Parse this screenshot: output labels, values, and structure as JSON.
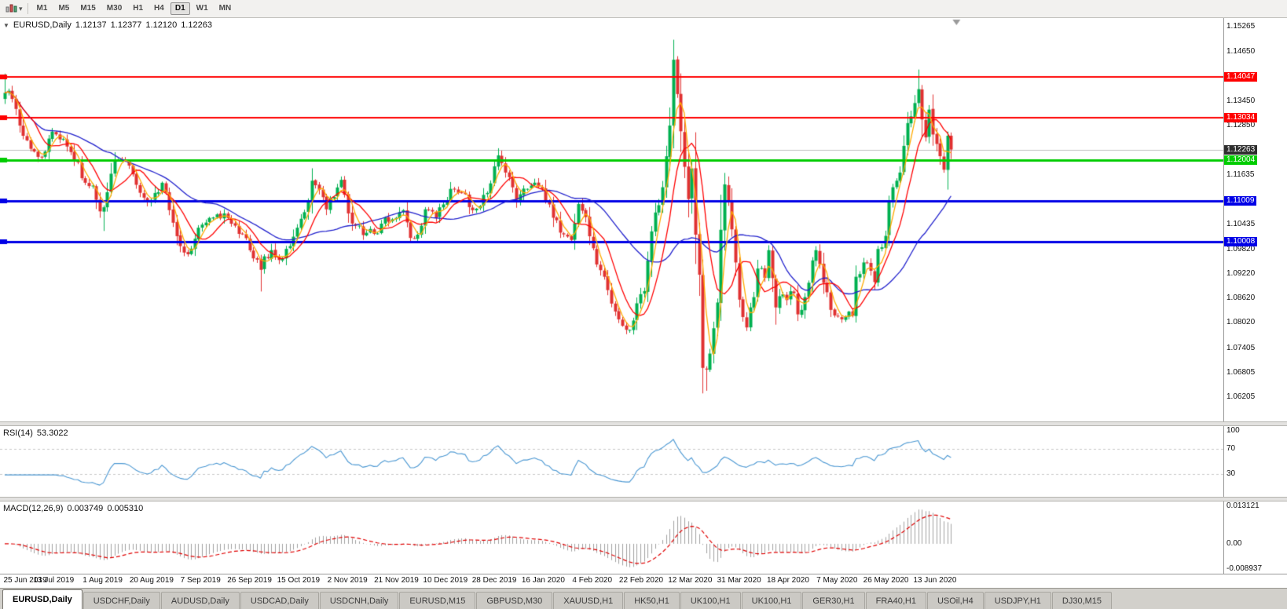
{
  "toolbar": {
    "timeframes": [
      "M1",
      "M5",
      "M15",
      "M30",
      "H1",
      "H4",
      "D1",
      "W1",
      "MN"
    ],
    "active_timeframe": "D1"
  },
  "chart": {
    "collapse_arrow": "▼",
    "header": {
      "symbol": "EURUSD,Daily",
      "open": "1.12137",
      "high": "1.12377",
      "low": "1.12120",
      "close": "1.12263"
    }
  },
  "chart_data": {
    "type": "candlestick",
    "symbol": "EURUSD",
    "timeframe": "Daily",
    "title": "EURUSD,Daily",
    "last_ohlc": {
      "open": 1.12137,
      "high": 1.12377,
      "low": 1.1212,
      "close": 1.12263
    },
    "current_price": 1.12263,
    "y_range": [
      1.0561,
      1.1548
    ],
    "y_ticks": [
      {
        "value": 1.15265,
        "label": "1.15265"
      },
      {
        "value": 1.1465,
        "label": "1.14650"
      },
      {
        "value": 1.1345,
        "label": "1.13450"
      },
      {
        "value": 1.1285,
        "label": "1.12850"
      },
      {
        "value": 1.11635,
        "label": "1.11635"
      },
      {
        "value": 1.10435,
        "label": "1.10435"
      },
      {
        "value": 1.0982,
        "label": "1.09820"
      },
      {
        "value": 1.0922,
        "label": "1.09220"
      },
      {
        "value": 1.0862,
        "label": "1.08620"
      },
      {
        "value": 1.0802,
        "label": "1.08020"
      },
      {
        "value": 1.07405,
        "label": "1.07405"
      },
      {
        "value": 1.06805,
        "label": "1.06805"
      },
      {
        "value": 1.06205,
        "label": "1.06205"
      }
    ],
    "price_lines": [
      {
        "value": 1.14047,
        "label": "1.14047",
        "color": "#ff0000",
        "width": 2,
        "kind": "resistance"
      },
      {
        "value": 1.13034,
        "label": "1.13034",
        "color": "#ff0000",
        "width": 2,
        "kind": "resistance"
      },
      {
        "value": 1.12263,
        "label": "1.12263",
        "color": "#2e2e2e",
        "width": 1,
        "kind": "current-price"
      },
      {
        "value": 1.12004,
        "label": "1.12004",
        "color": "#00cc00",
        "width": 3,
        "kind": "support"
      },
      {
        "value": 1.11009,
        "label": "1.11009",
        "color": "#0000e6",
        "width": 3,
        "kind": "support"
      },
      {
        "value": 1.10008,
        "label": "1.10008",
        "color": "#0000e6",
        "width": 3,
        "kind": "support"
      }
    ],
    "x_labels": [
      "25 Jun 2019",
      "13 Jul 2019",
      "1 Aug 2019",
      "20 Aug 2019",
      "7 Sep 2019",
      "26 Sep 2019",
      "15 Oct 2019",
      "2 Nov 2019",
      "21 Nov 2019",
      "10 Dec 2019",
      "28 Dec 2019",
      "16 Jan 2020",
      "4 Feb 2020",
      "22 Feb 2020",
      "12 Mar 2020",
      "31 Mar 2020",
      "18 Apr 2020",
      "7 May 2020",
      "26 May 2020",
      "13 Jun 2020"
    ],
    "candle_count": 260,
    "close_anchors": [
      [
        0,
        1.1365
      ],
      [
        2,
        1.135
      ],
      [
        4,
        1.1285
      ],
      [
        7,
        1.1228
      ],
      [
        10,
        1.1207
      ],
      [
        13,
        1.127
      ],
      [
        16,
        1.1252
      ],
      [
        18,
        1.122
      ],
      [
        22,
        1.1145
      ],
      [
        24,
        1.1138
      ],
      [
        26,
        1.1075
      ],
      [
        27,
        1.1085
      ],
      [
        30,
        1.12
      ],
      [
        33,
        1.1198
      ],
      [
        36,
        1.114
      ],
      [
        39,
        1.1098
      ],
      [
        41,
        1.112
      ],
      [
        43,
        1.1145
      ],
      [
        45,
        1.1078
      ],
      [
        48,
        1.099
      ],
      [
        50,
        1.097
      ],
      [
        53,
        1.1035
      ],
      [
        57,
        1.106
      ],
      [
        60,
        1.107
      ],
      [
        63,
        1.104
      ],
      [
        65,
        1.102
      ],
      [
        68,
        1.096
      ],
      [
        70,
        1.0932
      ],
      [
        71,
        1.0965
      ],
      [
        73,
        1.098
      ],
      [
        75,
        1.0956
      ],
      [
        78,
        1.099
      ],
      [
        80,
        1.1035
      ],
      [
        82,
        1.1073
      ],
      [
        84,
        1.115
      ],
      [
        86,
        1.1128
      ],
      [
        88,
        1.108
      ],
      [
        90,
        1.111
      ],
      [
        92,
        1.1152
      ],
      [
        94,
        1.107
      ],
      [
        96,
        1.104
      ],
      [
        98,
        1.1017
      ],
      [
        100,
        1.1032
      ],
      [
        102,
        1.1021
      ],
      [
        104,
        1.106
      ],
      [
        107,
        1.1059
      ],
      [
        109,
        1.1078
      ],
      [
        111,
        1.101
      ],
      [
        113,
        1.1018
      ],
      [
        115,
        1.108
      ],
      [
        118,
        1.106
      ],
      [
        120,
        1.1092
      ],
      [
        122,
        1.113
      ],
      [
        124,
        1.112
      ],
      [
        126,
        1.1117
      ],
      [
        128,
        1.1078
      ],
      [
        130,
        1.1088
      ],
      [
        132,
        1.112
      ],
      [
        135,
        1.1212
      ],
      [
        137,
        1.117
      ],
      [
        140,
        1.1103
      ],
      [
        143,
        1.113
      ],
      [
        146,
        1.1136
      ],
      [
        149,
        1.1092
      ],
      [
        152,
        1.1023
      ],
      [
        155,
        1.1005
      ],
      [
        157,
        1.1093
      ],
      [
        159,
        1.1061
      ],
      [
        162,
        1.0945
      ],
      [
        164,
        1.0915
      ],
      [
        167,
        1.083
      ],
      [
        169,
        1.0795
      ],
      [
        171,
        1.0785
      ],
      [
        173,
        1.085
      ],
      [
        175,
        1.088
      ],
      [
        177,
        1.1026
      ],
      [
        180,
        1.1134
      ],
      [
        182,
        1.1285
      ],
      [
        183,
        1.1446
      ],
      [
        184,
        1.1362
      ],
      [
        185,
        1.1271
      ],
      [
        186,
        1.1184
      ],
      [
        187,
        1.1105
      ],
      [
        188,
        1.118
      ],
      [
        189,
        1.1018
      ],
      [
        190,
        1.092
      ],
      [
        191,
        1.0692
      ],
      [
        192,
        1.0688
      ],
      [
        193,
        1.0727
      ],
      [
        194,
        1.0789
      ],
      [
        195,
        1.0852
      ],
      [
        196,
        1.103
      ],
      [
        197,
        1.1141
      ],
      [
        198,
        1.1098
      ],
      [
        199,
        1.1031
      ],
      [
        200,
        1.095
      ],
      [
        201,
        1.0859
      ],
      [
        203,
        1.0791
      ],
      [
        205,
        1.0865
      ],
      [
        206,
        1.0935
      ],
      [
        208,
        1.0912
      ],
      [
        209,
        1.098
      ],
      [
        211,
        1.084
      ],
      [
        213,
        1.0872
      ],
      [
        214,
        1.0858
      ],
      [
        216,
        1.0875
      ],
      [
        217,
        1.0823
      ],
      [
        219,
        1.0865
      ],
      [
        221,
        1.0955
      ],
      [
        222,
        1.098
      ],
      [
        224,
        1.09
      ],
      [
        226,
        1.0834
      ],
      [
        228,
        1.0818
      ],
      [
        230,
        1.0818
      ],
      [
        232,
        1.082
      ],
      [
        233,
        1.0915
      ],
      [
        235,
        1.095
      ],
      [
        236,
        1.0949
      ],
      [
        238,
        1.0902
      ],
      [
        239,
        1.0983
      ],
      [
        241,
        1.1015
      ],
      [
        242,
        1.1101
      ],
      [
        243,
        1.1134
      ],
      [
        245,
        1.117
      ],
      [
        247,
        1.1291
      ],
      [
        249,
        1.134
      ],
      [
        250,
        1.1374
      ],
      [
        251,
        1.13
      ],
      [
        252,
        1.1256
      ],
      [
        253,
        1.1324
      ],
      [
        254,
        1.1263
      ],
      [
        255,
        1.124
      ],
      [
        256,
        1.121
      ],
      [
        257,
        1.1177
      ],
      [
        258,
        1.126
      ],
      [
        259,
        1.12263
      ]
    ],
    "wick_overrides": {
      "0": {
        "high": 1.1412
      },
      "27": {
        "low": 1.1027
      },
      "70": {
        "low": 1.0879
      },
      "171": {
        "low": 1.0778
      },
      "183": {
        "high": 1.1495
      },
      "192": {
        "low": 1.0636
      },
      "250": {
        "high": 1.1422
      }
    },
    "up_color": "#00b050",
    "down_color": "#e03131",
    "moving_averages": [
      {
        "period": 30,
        "color": "#2020cc",
        "name": "slow-ma"
      },
      {
        "period": 9,
        "color": "#ff0000",
        "name": "medium-ma"
      },
      {
        "period": 4,
        "color": "#ffaa00",
        "name": "fast-ma"
      }
    ]
  },
  "rsi": {
    "title": "RSI(14)",
    "value": "53.3022",
    "period": 14,
    "range": [
      0,
      100
    ],
    "levels": [
      70,
      30
    ],
    "axis": [
      {
        "value": 100,
        "label": "100"
      },
      {
        "value": 70,
        "label": "70"
      },
      {
        "value": 30,
        "label": "30"
      }
    ],
    "line_color": "#4a97d2"
  },
  "macd": {
    "title": "MACD(12,26,9)",
    "macd_value": "0.003749",
    "signal_value": "0.005310",
    "params": [
      12,
      26,
      9
    ],
    "range": [
      -0.008937,
      0.013121
    ],
    "axis": [
      {
        "value": 0.013121,
        "label": "0.013121"
      },
      {
        "value": 0,
        "label": "0.00"
      },
      {
        "value": -0.008937,
        "label": "-0.008937"
      }
    ],
    "histogram_color": "#a0a0a0",
    "signal_color": "#e00000"
  },
  "tabs": {
    "items": [
      "EURUSD,Daily",
      "USDCHF,Daily",
      "AUDUSD,Daily",
      "USDCAD,Daily",
      "USDCNH,Daily",
      "EURUSD,M15",
      "GBPUSD,M30",
      "XAUUSD,H1",
      "HK50,H1",
      "UK100,H1",
      "UK100,H1",
      "GER30,H1",
      "FRA40,H1",
      "USOil,H4",
      "USDJPY,H1",
      "DJ30,M15"
    ],
    "active": "EURUSD,Daily"
  }
}
